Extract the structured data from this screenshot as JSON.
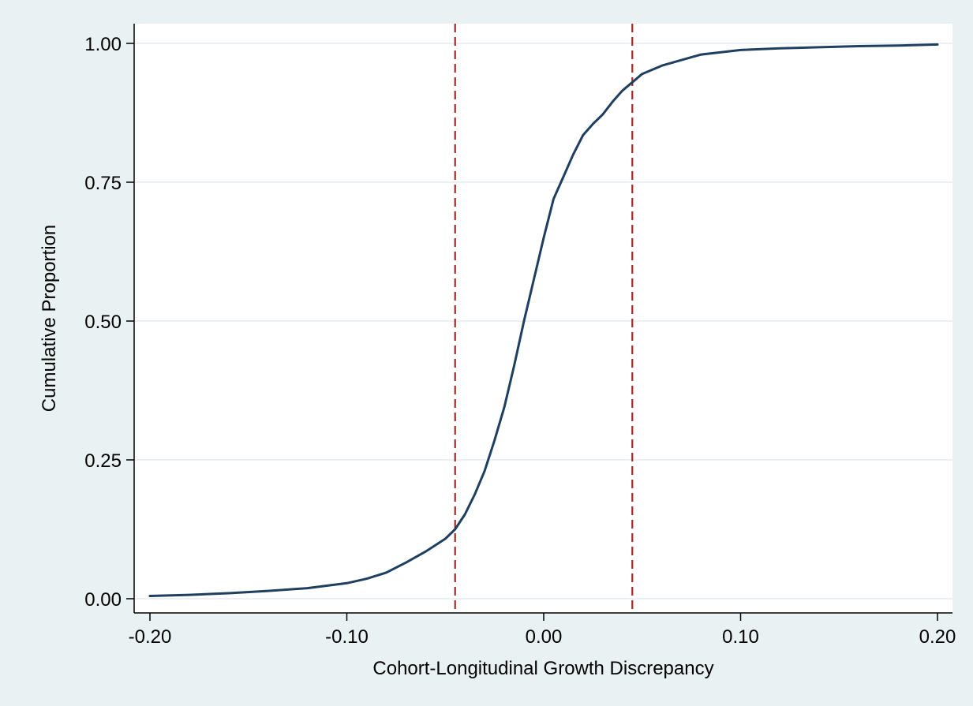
{
  "chart_data": {
    "type": "line",
    "title": "",
    "xlabel": "Cohort-Longitudinal Growth Discrepancy",
    "ylabel": "Cumulative Proportion",
    "xlim": [
      -0.2,
      0.2
    ],
    "ylim": [
      0,
      1
    ],
    "x_ticks": [
      -0.2,
      -0.1,
      0.0,
      0.1,
      0.2
    ],
    "x_tick_labels": [
      "-0.20",
      "-0.10",
      "0.00",
      "0.10",
      "0.20"
    ],
    "y_ticks": [
      0,
      0.25,
      0.5,
      0.75,
      1.0
    ],
    "y_tick_labels": [
      "0.00",
      "0.25",
      "0.50",
      "0.75",
      "1.00"
    ],
    "grid": "horizontal",
    "legend": "none",
    "reference_lines": [
      {
        "orientation": "vertical",
        "x": -0.045,
        "style": "dashed",
        "color": "#a52a2a"
      },
      {
        "orientation": "vertical",
        "x": 0.045,
        "style": "dashed",
        "color": "#a52a2a"
      }
    ],
    "series": [
      {
        "color": "#1f3f60",
        "x": [
          -0.2,
          -0.18,
          -0.16,
          -0.14,
          -0.12,
          -0.1,
          -0.09,
          -0.08,
          -0.07,
          -0.06,
          -0.05,
          -0.045,
          -0.04,
          -0.035,
          -0.03,
          -0.025,
          -0.02,
          -0.015,
          -0.01,
          -0.005,
          0.0,
          0.005,
          0.01,
          0.015,
          0.02,
          0.025,
          0.03,
          0.035,
          0.04,
          0.045,
          0.05,
          0.06,
          0.07,
          0.08,
          0.09,
          0.1,
          0.12,
          0.14,
          0.16,
          0.18,
          0.2
        ],
        "y": [
          0.005,
          0.007,
          0.01,
          0.014,
          0.019,
          0.028,
          0.036,
          0.047,
          0.065,
          0.085,
          0.108,
          0.125,
          0.152,
          0.188,
          0.23,
          0.285,
          0.345,
          0.42,
          0.5,
          0.575,
          0.65,
          0.72,
          0.76,
          0.8,
          0.835,
          0.855,
          0.872,
          0.895,
          0.915,
          0.93,
          0.945,
          0.96,
          0.97,
          0.98,
          0.984,
          0.988,
          0.991,
          0.993,
          0.995,
          0.996,
          0.998
        ]
      }
    ]
  },
  "colors": {
    "background": "#eaf1f3",
    "plot_area": "#ffffff",
    "grid": "#e3ecef",
    "series": "#1f3f60",
    "reference": "#a52a2a"
  }
}
